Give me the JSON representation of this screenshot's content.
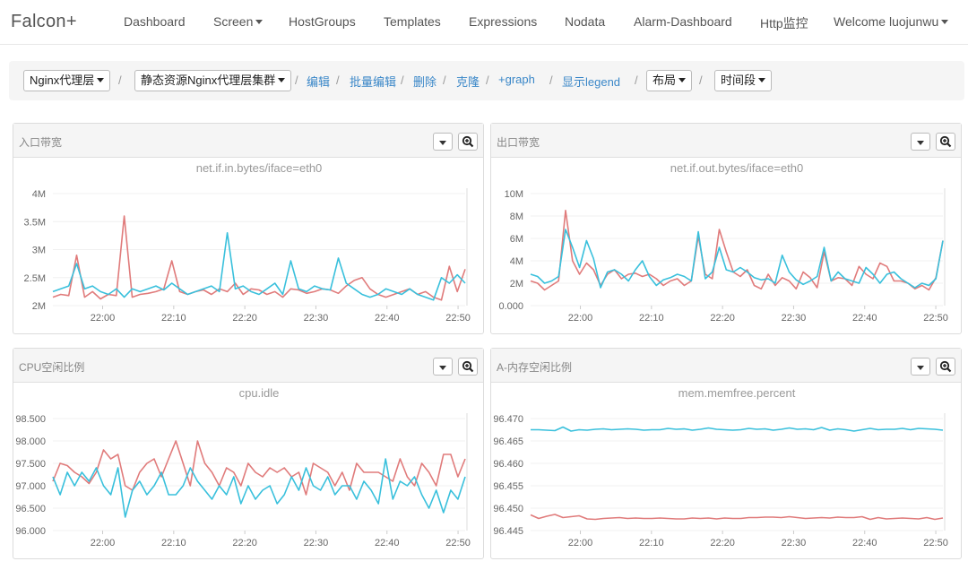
{
  "navbar": {
    "brand": "Falcon+",
    "items": [
      {
        "label": "Dashboard",
        "dropdown": false
      },
      {
        "label": "Screen",
        "dropdown": true
      },
      {
        "label": "HostGroups",
        "dropdown": false
      },
      {
        "label": "Templates",
        "dropdown": false
      },
      {
        "label": "Expressions",
        "dropdown": false
      },
      {
        "label": "Nodata",
        "dropdown": false
      },
      {
        "label": "Alarm-Dashboard",
        "dropdown": false
      },
      {
        "label": "Http监控",
        "dropdown": false
      },
      {
        "label": "Welcome luojunwu",
        "dropdown": true
      }
    ]
  },
  "toolbar": {
    "screen_select": "Nginx代理层",
    "subscreen_select": "静态资源Nginx代理层集群",
    "links": {
      "edit": "编辑",
      "batch_edit": "批量编辑",
      "delete": "删除",
      "clone": "克隆",
      "add_graph": "+graph",
      "show_legend": "显示legend"
    },
    "layout_select": "布局",
    "timerange_select": "时间段"
  },
  "colors": {
    "series_red": "#e07b7b",
    "series_cyan": "#39c0dc",
    "link": "#3a87c8"
  },
  "icons": {
    "dropdown": "caret-down-icon",
    "zoom": "zoom-in-icon"
  },
  "panels": [
    {
      "title": "入口带宽",
      "chart_data": {
        "type": "line",
        "title": "net.if.in.bytes/iface=eth0",
        "x_ticks": [
          "22:00",
          "22:10",
          "22:20",
          "22:30",
          "22:40",
          "22:50"
        ],
        "y_ticks": [
          "2M",
          "2.5M",
          "3M",
          "3.5M",
          "4M"
        ],
        "ylim": [
          2,
          4
        ],
        "xlim": [
          "21:53",
          "22:51"
        ],
        "series": [
          {
            "color": "#e07b7b",
            "values": [
              2.15,
              2.2,
              2.18,
              2.9,
              2.15,
              2.25,
              2.12,
              2.2,
              2.18,
              3.6,
              2.15,
              2.2,
              2.22,
              2.25,
              2.3,
              2.8,
              2.25,
              2.2,
              2.25,
              2.28,
              2.2,
              2.3,
              2.25,
              2.4,
              2.2,
              2.3,
              2.28,
              2.2,
              2.25,
              2.15,
              2.3,
              2.28,
              2.22,
              2.25,
              2.3,
              2.28,
              2.22,
              2.35,
              2.45,
              2.5,
              2.3,
              2.2,
              2.15,
              2.2,
              2.25,
              2.3,
              2.2,
              2.25,
              2.15,
              2.1,
              2.7,
              2.25,
              2.65
            ]
          },
          {
            "color": "#39c0dc",
            "values": [
              2.25,
              2.3,
              2.35,
              2.75,
              2.3,
              2.35,
              2.25,
              2.2,
              2.3,
              2.15,
              2.3,
              2.25,
              2.3,
              2.35,
              2.28,
              2.4,
              2.3,
              2.2,
              2.25,
              2.3,
              2.35,
              2.25,
              3.3,
              2.3,
              2.35,
              2.25,
              2.2,
              2.3,
              2.4,
              2.2,
              2.8,
              2.3,
              2.25,
              2.35,
              2.3,
              2.28,
              2.85,
              2.4,
              2.3,
              2.2,
              2.15,
              2.2,
              2.3,
              2.25,
              2.2,
              2.3,
              2.2,
              2.15,
              2.1,
              2.5,
              2.4,
              2.55,
              2.4
            ]
          }
        ]
      }
    },
    {
      "title": "出口带宽",
      "chart_data": {
        "type": "line",
        "title": "net.if.out.bytes/iface=eth0",
        "x_ticks": [
          "22:00",
          "22:10",
          "22:20",
          "22:30",
          "22:40",
          "22:50"
        ],
        "y_ticks": [
          "0.000",
          "2M",
          "4M",
          "6M",
          "8M",
          "10M"
        ],
        "ylim": [
          0,
          10
        ],
        "xlim": [
          "21:53",
          "22:51"
        ],
        "series": [
          {
            "color": "#e07b7b",
            "values": [
              2.2,
              2.0,
              1.4,
              1.8,
              2.2,
              8.5,
              4.0,
              2.8,
              3.8,
              3.2,
              1.8,
              2.8,
              3.2,
              2.4,
              2.8,
              2.9,
              2.6,
              2.8,
              2.4,
              1.8,
              2.2,
              2.4,
              1.8,
              2.2,
              6.2,
              2.8,
              2.4,
              6.8,
              4.8,
              3.0,
              2.6,
              3.2,
              1.8,
              1.5,
              2.8,
              1.8,
              2.5,
              2.2,
              1.5,
              3.0,
              2.5,
              1.6,
              4.8,
              2.2,
              2.5,
              2.4,
              1.8,
              3.5,
              2.8,
              2.4,
              3.8,
              3.5,
              2.2,
              2.2,
              2.0,
              1.5,
              1.8,
              1.4,
              2.5,
              5.8
            ]
          },
          {
            "color": "#39c0dc",
            "values": [
              2.8,
              2.6,
              2.0,
              2.2,
              2.6,
              6.8,
              5.2,
              3.4,
              5.8,
              4.2,
              1.6,
              3.0,
              3.2,
              2.8,
              2.2,
              3.2,
              4.0,
              2.6,
              1.8,
              2.3,
              2.5,
              2.8,
              2.6,
              2.2,
              6.6,
              2.4,
              3.0,
              5.2,
              3.2,
              3.0,
              3.4,
              3.0,
              2.5,
              2.3,
              2.4,
              2.0,
              4.5,
              3.0,
              2.3,
              1.9,
              2.2,
              2.6,
              5.2,
              2.2,
              3.0,
              2.4,
              2.2,
              2.0,
              3.4,
              2.8,
              2.0,
              2.8,
              3.0,
              2.4,
              2.0,
              1.6,
              2.0,
              1.8,
              2.4,
              5.8
            ]
          }
        ]
      }
    },
    {
      "title": "CPU空闲比例",
      "chart_data": {
        "type": "line",
        "title": "cpu.idle",
        "x_ticks": [
          "22:00",
          "22:10",
          "22:20",
          "22:30",
          "22:40",
          "22:50"
        ],
        "y_ticks": [
          "96.000",
          "96.500",
          "97.000",
          "97.500",
          "98.000",
          "98.500"
        ],
        "ylim": [
          96.0,
          98.5
        ],
        "xlim": [
          "21:53",
          "22:51"
        ],
        "series": [
          {
            "color": "#e07b7b",
            "values": [
              97.1,
              97.5,
              97.45,
              97.3,
              97.2,
              97.05,
              97.3,
              97.8,
              97.6,
              97.7,
              97.0,
              96.9,
              97.3,
              97.5,
              97.6,
              97.2,
              97.6,
              98.0,
              97.5,
              97.0,
              98.0,
              97.5,
              97.3,
              97.0,
              97.4,
              97.3,
              97.0,
              97.5,
              97.3,
              97.2,
              97.4,
              97.3,
              97.4,
              97.2,
              97.3,
              96.8,
              97.5,
              97.4,
              97.3,
              97.0,
              97.3,
              96.9,
              97.5,
              97.3,
              97.3,
              97.3,
              97.2,
              97.1,
              97.6,
              97.2,
              97.0,
              97.5,
              97.3,
              97.0,
              97.7,
              97.7,
              97.2,
              97.6
            ]
          },
          {
            "color": "#39c0dc",
            "values": [
              97.2,
              96.8,
              97.3,
              97.0,
              97.3,
              97.1,
              97.4,
              97.0,
              96.8,
              97.4,
              96.3,
              96.9,
              97.1,
              96.8,
              97.0,
              97.3,
              96.8,
              96.8,
              97.0,
              97.4,
              97.1,
              96.9,
              96.7,
              97.0,
              96.8,
              97.2,
              96.6,
              97.0,
              96.7,
              96.9,
              97.0,
              96.6,
              96.8,
              97.2,
              96.9,
              97.4,
              97.0,
              96.9,
              97.2,
              96.8,
              97.0,
              97.0,
              96.7,
              97.1,
              96.9,
              96.6,
              97.6,
              96.7,
              97.1,
              97.0,
              97.2,
              96.8,
              96.5,
              96.9,
              96.4,
              96.9,
              96.7,
              97.2
            ]
          }
        ]
      }
    },
    {
      "title": "A-内存空闲比例",
      "chart_data": {
        "type": "line",
        "title": "mem.memfree.percent",
        "x_ticks": [
          "22:00",
          "22:10",
          "22:20",
          "22:30",
          "22:40",
          "22:50"
        ],
        "y_ticks": [
          "96.445",
          "96.450",
          "96.455",
          "96.460",
          "96.465",
          "96.470"
        ],
        "ylim": [
          96.445,
          96.47
        ],
        "xlim": [
          "21:53",
          "22:51"
        ],
        "series": [
          {
            "color": "#e07b7b",
            "values": [
              96.4485,
              96.4477,
              96.4482,
              96.4486,
              96.4479,
              96.4481,
              96.4483,
              96.4476,
              96.4475,
              96.4477,
              96.4478,
              96.4479,
              96.4477,
              96.4478,
              96.4477,
              96.4477,
              96.4478,
              96.4477,
              96.4476,
              96.4476,
              96.4478,
              96.4477,
              96.4478,
              96.4476,
              96.4478,
              96.4477,
              96.4477,
              96.4479,
              96.4479,
              96.448,
              96.448,
              96.4479,
              96.4481,
              96.4479,
              96.4477,
              96.4478,
              96.4479,
              96.4478,
              96.448,
              96.4479,
              96.4479,
              96.4481,
              96.4475,
              96.4479,
              96.4476,
              96.4477,
              96.4478,
              96.4477,
              96.4476,
              96.4479,
              96.4475,
              96.4478
            ]
          },
          {
            "color": "#39c0dc",
            "values": [
              96.4675,
              96.4675,
              96.4674,
              96.4673,
              96.4681,
              96.4672,
              96.4675,
              96.4674,
              96.4676,
              96.4677,
              96.4675,
              96.4676,
              96.4677,
              96.4676,
              96.4674,
              96.4675,
              96.4675,
              96.4678,
              96.4676,
              96.4677,
              96.4674,
              96.4676,
              96.4679,
              96.4676,
              96.4675,
              96.4674,
              96.4675,
              96.4678,
              96.4676,
              96.4677,
              96.4674,
              96.4676,
              96.4679,
              96.4676,
              96.4677,
              96.4675,
              96.468,
              96.4674,
              96.4677,
              96.4675,
              96.4672,
              96.4675,
              96.4678,
              96.4675,
              96.4676,
              96.4676,
              96.4678,
              96.4675,
              96.4678,
              96.4677,
              96.4676,
              96.4674
            ]
          }
        ]
      }
    }
  ]
}
